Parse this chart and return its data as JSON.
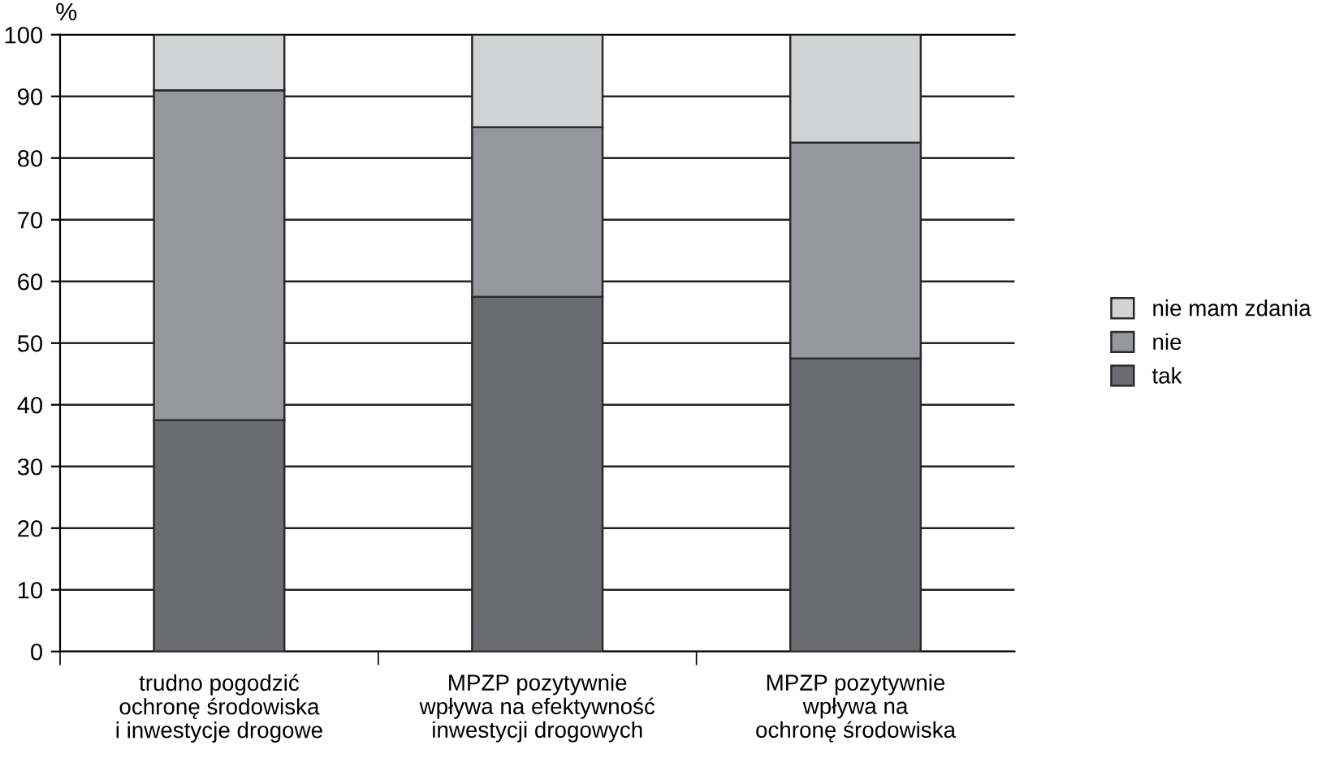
{
  "chart_data": {
    "type": "bar",
    "stacked": true,
    "ylabel": "%",
    "categories": [
      "trudno pogodzić\nochronę środowiska\ni inwestycje drogowe",
      "MPZP pozytywnie\nwpływa na efektywność\ninwestycji drogowych",
      "MPZP pozytywnie\nwpływa na\nochronę środowiska"
    ],
    "series": [
      {
        "name": "tak",
        "color": "#6b6c70",
        "values": [
          37.5,
          57.5,
          47.5
        ]
      },
      {
        "name": "nie",
        "color": "#97989c",
        "values": [
          53.5,
          27.5,
          35
        ]
      },
      {
        "name": "nie mam zdania",
        "color": "#d2d3d5",
        "values": [
          9,
          15,
          17.5
        ]
      }
    ],
    "ylim": [
      0,
      100
    ],
    "yticks": [
      0,
      10,
      20,
      30,
      40,
      50,
      60,
      70,
      80,
      90,
      100
    ],
    "grid": "y",
    "legend": "right"
  }
}
